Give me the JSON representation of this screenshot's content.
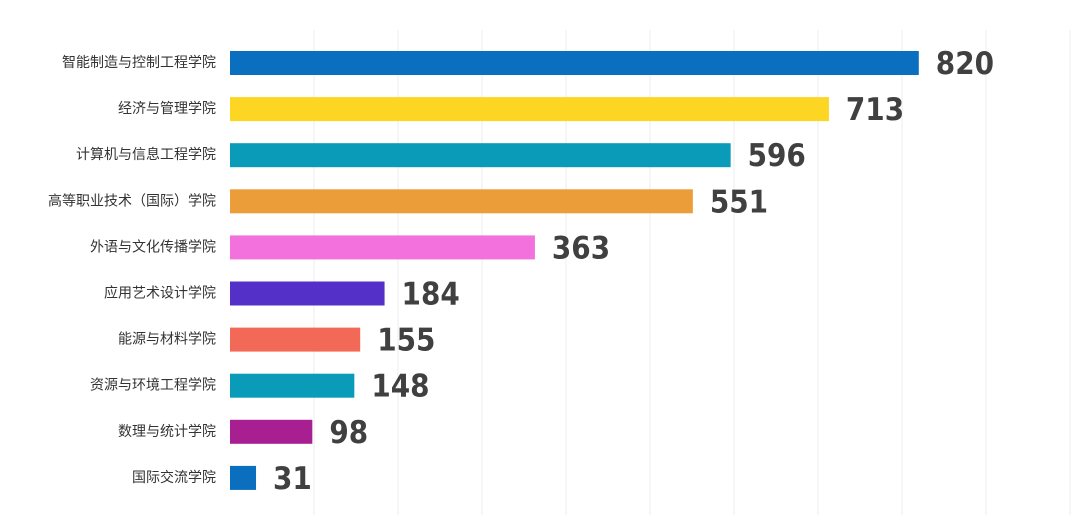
{
  "chart_data": {
    "type": "bar",
    "orientation": "horizontal",
    "categories": [
      "智能制造与控制工程学院",
      "经济与管理学院",
      "计算机与信息工程学院",
      "高等职业技术（国际）学院",
      "外语与文化传播学院",
      "应用艺术设计学院",
      "能源与材料学院",
      "资源与环境工程学院",
      "数理与统计学院",
      "国际交流学院"
    ],
    "values": [
      820,
      713,
      596,
      551,
      363,
      184,
      155,
      148,
      98,
      31
    ],
    "colors": [
      "#0a6fbf",
      "#fdd523",
      "#0a9bb8",
      "#eb9d3a",
      "#f271dc",
      "#5430c8",
      "#f26a57",
      "#0a9bb8",
      "#a81f92",
      "#0a6fbf"
    ],
    "title": "",
    "xlabel": "",
    "ylabel": "",
    "xlim": [
      0,
      1000
    ],
    "grid": true,
    "legend": "none"
  }
}
